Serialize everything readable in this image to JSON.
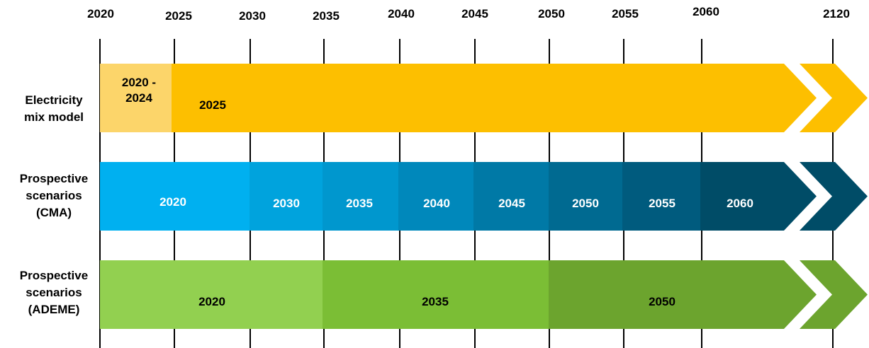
{
  "colors": {
    "tick": "#000000",
    "electricity_light": "#FCD56A",
    "electricity_main": "#FDBF00",
    "cma_2020": "#00B0F0",
    "cma_2030": "#00A3DD",
    "cma_2035": "#0097CE",
    "cma_2040": "#0088BB",
    "cma_2045": "#0079A6",
    "cma_2050": "#006A91",
    "cma_2055": "#005B7E",
    "cma_2060": "#004C67",
    "ademe_2020": "#92D050",
    "ademe_2035": "#7BBE35",
    "ademe_2050": "#6CA42E"
  },
  "axis": {
    "years": [
      "2020",
      "2025",
      "2030",
      "2035",
      "2040",
      "2045",
      "2050",
      "2055",
      "2060",
      "2120"
    ]
  },
  "rows": [
    {
      "label_lines": [
        "Electricity",
        "mix model"
      ],
      "segments": [
        {
          "label_lines": [
            "2020 -",
            "2024"
          ],
          "color": "#FCD56A",
          "text_color": "#000000"
        },
        {
          "label_lines": [
            "2025"
          ],
          "color": "#FDBF00",
          "text_color": "#000000"
        }
      ],
      "tail_color": "#FDBF00"
    },
    {
      "label_lines": [
        "Prospective",
        "scenarios",
        "(CMA)"
      ],
      "segments": [
        {
          "label_lines": [
            "2020"
          ],
          "color": "#00B0F0",
          "text_color": "#FFFFFF"
        },
        {
          "label_lines": [
            "2030"
          ],
          "color": "#00A3DD",
          "text_color": "#FFFFFF"
        },
        {
          "label_lines": [
            "2035"
          ],
          "color": "#0097CE",
          "text_color": "#FFFFFF"
        },
        {
          "label_lines": [
            "2040"
          ],
          "color": "#0088BB",
          "text_color": "#FFFFFF"
        },
        {
          "label_lines": [
            "2045"
          ],
          "color": "#0079A6",
          "text_color": "#FFFFFF"
        },
        {
          "label_lines": [
            "2050"
          ],
          "color": "#006A91",
          "text_color": "#FFFFFF"
        },
        {
          "label_lines": [
            "2055"
          ],
          "color": "#005B7E",
          "text_color": "#FFFFFF"
        },
        {
          "label_lines": [
            "2060"
          ],
          "color": "#004C67",
          "text_color": "#FFFFFF"
        }
      ],
      "tail_color": "#004C67"
    },
    {
      "label_lines": [
        "Prospective",
        "scenarios",
        "(ADEME)"
      ],
      "segments": [
        {
          "label_lines": [
            "2020"
          ],
          "color": "#92D050",
          "text_color": "#000000"
        },
        {
          "label_lines": [
            "2035"
          ],
          "color": "#7BBE35",
          "text_color": "#000000"
        },
        {
          "label_lines": [
            "2050"
          ],
          "color": "#6CA42E",
          "text_color": "#000000"
        }
      ],
      "tail_color": "#6CA42E"
    }
  ]
}
